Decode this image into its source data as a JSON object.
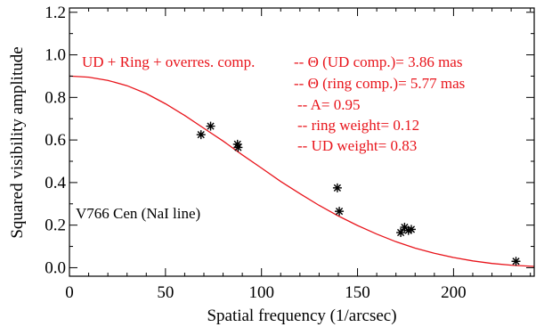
{
  "chart_data": {
    "type": "scatter",
    "xlabel": "Spatial frequency (1/arcsec)",
    "ylabel": "Squared visibility amplitude",
    "xlim": [
      0,
      242
    ],
    "ylim": [
      -0.04,
      1.22
    ],
    "x_ticks": [
      0,
      50,
      100,
      150,
      200
    ],
    "y_ticks": [
      0.0,
      0.2,
      0.4,
      0.6,
      0.8,
      1.0,
      1.2
    ],
    "x_tick_labels": [
      "0",
      "50",
      "100",
      "150",
      "200"
    ],
    "y_tick_labels": [
      "0.0",
      "0.2",
      "0.4",
      "0.6",
      "0.8",
      "1.0",
      "1.2"
    ],
    "grid": false,
    "colors": {
      "model": "#e8141b",
      "data": "#000000",
      "axes": "#000000"
    },
    "series": [
      {
        "type": "scatter",
        "marker": "asterisk",
        "x": [
          68.5,
          73.5,
          87.5,
          87.8,
          139.5,
          140.5,
          172.5,
          174.5,
          176.5,
          178.0,
          232.5
        ],
        "y": [
          0.625,
          0.665,
          0.58,
          0.565,
          0.375,
          0.265,
          0.165,
          0.19,
          0.175,
          0.18,
          0.03
        ]
      },
      {
        "type": "line",
        "x": [
          0,
          10,
          20,
          30,
          40,
          50,
          60,
          70,
          80,
          90,
          100,
          110,
          120,
          130,
          140,
          150,
          160,
          170,
          180,
          190,
          200,
          210,
          220,
          230,
          242
        ],
        "y": [
          0.9,
          0.895,
          0.88,
          0.855,
          0.818,
          0.77,
          0.715,
          0.655,
          0.595,
          0.53,
          0.468,
          0.405,
          0.348,
          0.293,
          0.243,
          0.198,
          0.158,
          0.122,
          0.092,
          0.068,
          0.048,
          0.032,
          0.02,
          0.012,
          0.006
        ]
      }
    ],
    "annotations": {
      "model_header": "UD + Ring + overres. comp.",
      "params": [
        "-- Θ (UD comp.)= 3.86 mas",
        "-- Θ (ring comp.)= 5.77 mas",
        "-- A= 0.95",
        "-- ring weight= 0.12",
        "-- UD weight= 0.83"
      ],
      "target": "V766 Cen (NaI line)"
    }
  }
}
